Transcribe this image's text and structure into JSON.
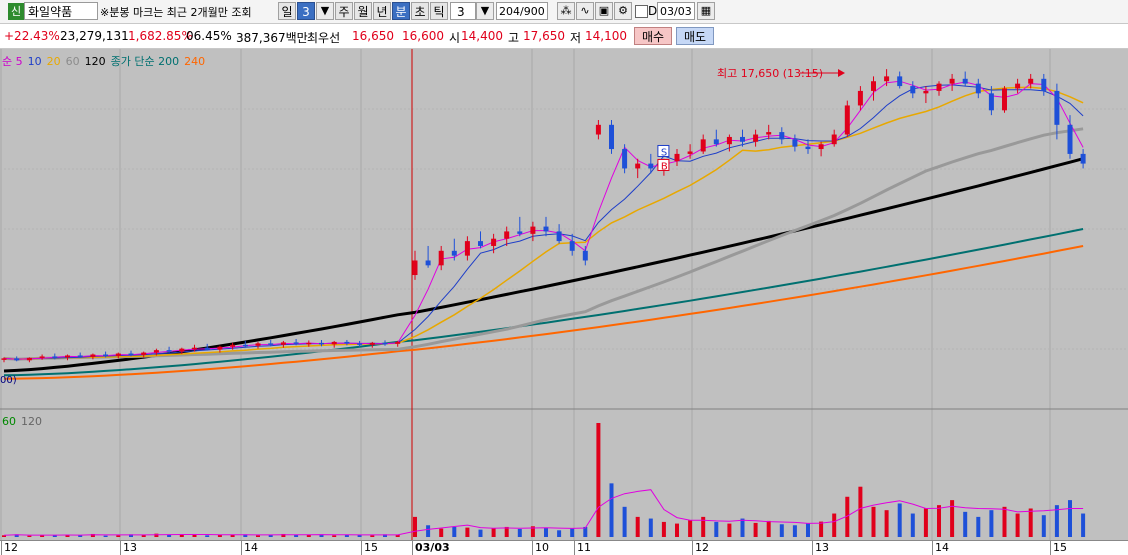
{
  "toolbar": {
    "stock_badge": "신",
    "stock_name": "화일약품",
    "notice": "※분봉 마크는 최근 2개월만 조회",
    "period_buttons": [
      {
        "label": "일",
        "selected": false
      },
      {
        "label": "3",
        "selected": true
      },
      {
        "label": "주",
        "selected": false
      },
      {
        "label": "월",
        "selected": false
      },
      {
        "label": "년",
        "selected": false
      },
      {
        "label": "분",
        "selected": true
      },
      {
        "label": "초",
        "selected": false
      },
      {
        "label": "틱",
        "selected": false
      }
    ],
    "interval_value": "3",
    "count_display": "204/900",
    "date_prefix": "D",
    "date_value": "03/03"
  },
  "quote": {
    "change_rate": "+22.43%",
    "volume": "23,279,131",
    "volume_ratio": "1,682.85%",
    "turnover": "06.45%",
    "trade_value": "387,367백만",
    "best_bid_label": "최우선",
    "best_ask": "16,650",
    "best_bid": "16,600",
    "open_label": "시",
    "open": "14,400",
    "high_label": "고",
    "high": "17,650",
    "low_label": "저",
    "low": "14,100",
    "buy_label": "매수",
    "sell_label": "매도"
  },
  "price_legend": [
    {
      "text": "순 5",
      "color": "#cc00cc"
    },
    {
      "text": "10",
      "color": "#1e3ec8"
    },
    {
      "text": "20",
      "color": "#e8a800"
    },
    {
      "text": "60",
      "color": "#8c8c8c"
    },
    {
      "text": "120",
      "color": "#000000"
    },
    {
      "text": "종가 단순 200",
      "color": "#007070"
    },
    {
      "text": "240",
      "color": "#ff6600"
    }
  ],
  "volume_legend": [
    {
      "text": "60",
      "color": "#008800"
    },
    {
      "text": "120",
      "color": "#666666"
    }
  ],
  "annotations": {
    "high_label": "최고 17,650 (13:15)",
    "marker_s": "S",
    "marker_b": "B",
    "left_tag": "00)"
  },
  "x_axis_labels": [
    "12",
    "13",
    "14",
    "15",
    "03/03",
    "10",
    "11",
    "12",
    "13",
    "14",
    "15"
  ],
  "colors": {
    "up": "#e0001b",
    "down": "#1e50d8",
    "chart_bg": "#c0c0c0",
    "date_divider": "#d00000"
  },
  "chart_data": {
    "type": "line",
    "price_range": {
      "min": 10800,
      "max": 17900
    },
    "high": {
      "value": 17650,
      "time": "13:15"
    },
    "candles": [
      [
        11660,
        11700,
        11600,
        11680
      ],
      [
        11680,
        11720,
        11620,
        11640
      ],
      [
        11640,
        11700,
        11600,
        11690
      ],
      [
        11690,
        11760,
        11650,
        11720
      ],
      [
        11720,
        11780,
        11660,
        11700
      ],
      [
        11700,
        11760,
        11640,
        11740
      ],
      [
        11740,
        11800,
        11690,
        11710
      ],
      [
        11710,
        11780,
        11660,
        11760
      ],
      [
        11760,
        11820,
        11700,
        11730
      ],
      [
        11730,
        11800,
        11680,
        11780
      ],
      [
        11780,
        11840,
        11720,
        11750
      ],
      [
        11750,
        11820,
        11700,
        11800
      ],
      [
        11800,
        11880,
        11740,
        11850
      ],
      [
        11850,
        11920,
        11780,
        11820
      ],
      [
        11820,
        11900,
        11770,
        11880
      ],
      [
        11880,
        11960,
        11820,
        11900
      ],
      [
        11900,
        11980,
        11840,
        11860
      ],
      [
        11860,
        11940,
        11800,
        11920
      ],
      [
        11920,
        12000,
        11860,
        11960
      ],
      [
        11960,
        12040,
        11900,
        11940
      ],
      [
        11940,
        12020,
        11880,
        11990
      ],
      [
        11990,
        12060,
        11930,
        11960
      ],
      [
        11960,
        12040,
        11900,
        12010
      ],
      [
        12010,
        12080,
        11950,
        11980
      ],
      [
        11980,
        12050,
        11920,
        12000
      ],
      [
        12000,
        12060,
        11930,
        11970
      ],
      [
        11970,
        12040,
        11900,
        12020
      ],
      [
        12020,
        12060,
        11950,
        11990
      ],
      [
        11990,
        12040,
        11920,
        11960
      ],
      [
        11960,
        12020,
        11900,
        12000
      ],
      [
        12000,
        12050,
        11940,
        11980
      ],
      [
        11980,
        12040,
        11920,
        12020
      ],
      [
        13400,
        13900,
        13300,
        13700
      ],
      [
        13700,
        14000,
        13550,
        13600
      ],
      [
        13600,
        14000,
        13500,
        13900
      ],
      [
        13900,
        14150,
        13700,
        13800
      ],
      [
        13800,
        14200,
        13700,
        14100
      ],
      [
        14100,
        14300,
        13950,
        14000
      ],
      [
        14000,
        14250,
        13850,
        14150
      ],
      [
        14150,
        14400,
        14000,
        14300
      ],
      [
        14300,
        14600,
        14200,
        14250
      ],
      [
        14250,
        14500,
        14100,
        14400
      ],
      [
        14400,
        14600,
        14200,
        14300
      ],
      [
        14300,
        14450,
        14050,
        14100
      ],
      [
        14100,
        14250,
        13800,
        13900
      ],
      [
        13900,
        14000,
        13600,
        13700
      ],
      [
        16300,
        16600,
        16200,
        16500
      ],
      [
        16500,
        16600,
        15900,
        16000
      ],
      [
        16000,
        16100,
        15500,
        15600
      ],
      [
        15600,
        15800,
        15400,
        15700
      ],
      [
        15700,
        15900,
        15500,
        15600
      ],
      [
        15600,
        15800,
        15450,
        15750
      ],
      [
        15750,
        16000,
        15650,
        15900
      ],
      [
        15900,
        16100,
        15800,
        15950
      ],
      [
        15950,
        16300,
        15900,
        16200
      ],
      [
        16200,
        16400,
        16050,
        16100
      ],
      [
        16100,
        16300,
        15950,
        16250
      ],
      [
        16250,
        16400,
        16050,
        16150
      ],
      [
        16150,
        16400,
        16050,
        16300
      ],
      [
        16300,
        16500,
        16200,
        16350
      ],
      [
        16350,
        16450,
        16100,
        16200
      ],
      [
        16200,
        16300,
        15950,
        16050
      ],
      [
        16050,
        16200,
        15900,
        16000
      ],
      [
        16000,
        16150,
        15850,
        16100
      ],
      [
        16100,
        16400,
        16050,
        16300
      ],
      [
        16300,
        17000,
        16250,
        16900
      ],
      [
        16900,
        17300,
        16800,
        17200
      ],
      [
        17200,
        17500,
        17000,
        17400
      ],
      [
        17400,
        17650,
        17300,
        17500
      ],
      [
        17500,
        17600,
        17250,
        17300
      ],
      [
        17300,
        17400,
        17050,
        17150
      ],
      [
        17150,
        17300,
        16950,
        17200
      ],
      [
        17200,
        17400,
        17100,
        17350
      ],
      [
        17350,
        17550,
        17200,
        17450
      ],
      [
        17450,
        17600,
        17300,
        17350
      ],
      [
        17350,
        17450,
        17050,
        17150
      ],
      [
        17150,
        17300,
        16700,
        16800
      ],
      [
        16800,
        17300,
        16750,
        17250
      ],
      [
        17250,
        17450,
        17150,
        17350
      ],
      [
        17350,
        17550,
        17250,
        17450
      ],
      [
        17450,
        17550,
        17100,
        17200
      ],
      [
        17200,
        17350,
        16200,
        16500
      ],
      [
        16500,
        16700,
        15800,
        15900
      ],
      [
        15900,
        16000,
        15600,
        15700
      ]
    ],
    "volumes": [
      5,
      8,
      4,
      6,
      5,
      7,
      6,
      9,
      4,
      5,
      8,
      6,
      10,
      7,
      6,
      9,
      5,
      7,
      6,
      8,
      5,
      6,
      9,
      7,
      6,
      8,
      5,
      7,
      6,
      5,
      8,
      6,
      60,
      35,
      25,
      30,
      28,
      22,
      26,
      30,
      24,
      32,
      27,
      20,
      25,
      30,
      340,
      160,
      90,
      60,
      55,
      45,
      40,
      50,
      60,
      45,
      40,
      55,
      42,
      48,
      38,
      35,
      40,
      46,
      70,
      120,
      150,
      90,
      80,
      100,
      70,
      85,
      95,
      110,
      75,
      60,
      80,
      90,
      70,
      85,
      65,
      95,
      110,
      70
    ],
    "ma200_end": 14350,
    "ma240_end": 14000
  }
}
